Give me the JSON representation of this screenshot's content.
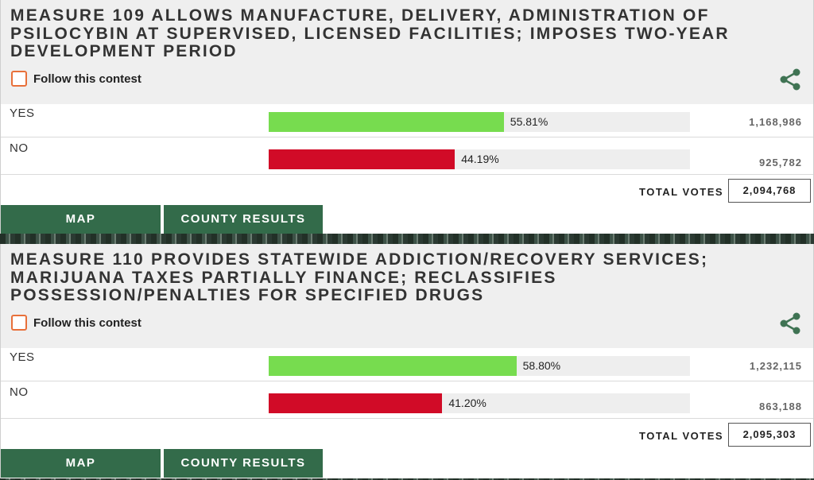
{
  "contests": [
    {
      "title": "MEASURE 109 ALLOWS MANUFACTURE, DELIVERY, ADMINISTRATION OF PSILOCYBIN AT SUPERVISED, LICENSED FACILITIES; IMPOSES TWO-YEAR DEVELOPMENT PERIOD",
      "follow_label": "Follow this contest",
      "options": [
        {
          "choice": "YES",
          "percent_label": "55.81%",
          "percent": 55.81,
          "votes": "1,168,986"
        },
        {
          "choice": "NO",
          "percent_label": "44.19%",
          "percent": 44.19,
          "votes": "925,782"
        }
      ],
      "total_label": "TOTAL VOTES",
      "total_votes": "2,094,768",
      "map_button": "MAP",
      "county_button": "COUNTY RESULTS"
    },
    {
      "title": "MEASURE 110 PROVIDES STATEWIDE ADDICTION/RECOVERY SERVICES; MARIJUANA TAXES PARTIALLY FINANCE; RECLASSIFIES POSSESSION/PENALTIES FOR SPECIFIED DRUGS",
      "follow_label": "Follow this contest",
      "options": [
        {
          "choice": "YES",
          "percent_label": "58.80%",
          "percent": 58.8,
          "votes": "1,232,115"
        },
        {
          "choice": "NO",
          "percent_label": "41.20%",
          "percent": 41.2,
          "votes": "863,188"
        }
      ],
      "total_label": "TOTAL VOTES",
      "total_votes": "2,095,303",
      "map_button": "MAP",
      "county_button": "COUNTY RESULTS"
    }
  ],
  "colors": {
    "yes": "#77dc4f",
    "no": "#d10b27",
    "button": "#336b4a",
    "checkbox": "#e8703a",
    "share": "#3f7353"
  },
  "icons": {
    "share": "share-icon",
    "follow": "checkbox-icon"
  }
}
